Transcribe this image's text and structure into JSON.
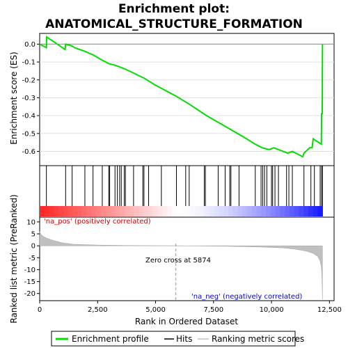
{
  "chart_data": {
    "type": "line",
    "title_line1": "Enrichment plot:",
    "title_line2": "ANATOMICAL_STRUCTURE_FORMATION",
    "es_panel": {
      "ylabel": "Enrichment score (ES)",
      "ylim": [
        -0.68,
        0.06
      ],
      "yticks": [
        0.0,
        -0.1,
        -0.2,
        -0.3,
        -0.4,
        -0.5,
        -0.6
      ],
      "ytick_labels": [
        "0.0",
        "-0.1",
        "-0.2",
        "-0.3",
        "-0.4",
        "-0.5",
        "-0.6"
      ],
      "series_name": "Enrichment profile",
      "color": "#00dd00",
      "points": [
        [
          0,
          0.0
        ],
        [
          290,
          -0.02
        ],
        [
          300,
          0.04
        ],
        [
          1100,
          -0.03
        ],
        [
          1120,
          0.0
        ],
        [
          1400,
          -0.01
        ],
        [
          1500,
          -0.02
        ],
        [
          1950,
          -0.04
        ],
        [
          2300,
          -0.06
        ],
        [
          2700,
          -0.09
        ],
        [
          3000,
          -0.11
        ],
        [
          3300,
          -0.12
        ],
        [
          3500,
          -0.13
        ],
        [
          3700,
          -0.14
        ],
        [
          4500,
          -0.19
        ],
        [
          5000,
          -0.23
        ],
        [
          5874,
          -0.29
        ],
        [
          6500,
          -0.34
        ],
        [
          7200,
          -0.4
        ],
        [
          8000,
          -0.46
        ],
        [
          8800,
          -0.52
        ],
        [
          9300,
          -0.56
        ],
        [
          9600,
          -0.58
        ],
        [
          9900,
          -0.59
        ],
        [
          10100,
          -0.58
        ],
        [
          10300,
          -0.59
        ],
        [
          10700,
          -0.61
        ],
        [
          10900,
          -0.6
        ],
        [
          11200,
          -0.62
        ],
        [
          11350,
          -0.63
        ],
        [
          11400,
          -0.61
        ],
        [
          11650,
          -0.58
        ],
        [
          11750,
          -0.58
        ],
        [
          11800,
          -0.53
        ],
        [
          12150,
          -0.56
        ],
        [
          12160,
          -0.39
        ],
        [
          12190,
          -0.39
        ],
        [
          12200,
          0.0
        ]
      ]
    },
    "hits": [
      290,
      1120,
      1400,
      1950,
      2300,
      2700,
      2980,
      3020,
      3250,
      3350,
      3450,
      3520,
      3650,
      3700,
      4050,
      4450,
      4500,
      4700,
      5250,
      5900,
      6300,
      6450,
      7100,
      7150,
      7700,
      8000,
      8200,
      8250,
      8600,
      9300,
      9550,
      9620,
      9700,
      9800,
      10000,
      10050,
      10150,
      10300,
      10650,
      10750,
      10900,
      11400,
      11700,
      11850,
      12100,
      12160,
      12200
    ],
    "metric_panel": {
      "ylabel": "Ranked list metric (PreRanked)",
      "ylim": [
        -23,
        12
      ],
      "yticks": [
        10,
        5,
        0,
        -5,
        -10,
        -15,
        -20
      ],
      "ytick_labels": [
        "10",
        "5",
        "0",
        "-5",
        "-10",
        "-15",
        "-20"
      ],
      "series_name": "Ranking metric scores",
      "profile": [
        [
          0,
          6.0
        ],
        [
          60,
          4.8
        ],
        [
          150,
          4.0
        ],
        [
          300,
          3.2
        ],
        [
          600,
          2.2
        ],
        [
          1000,
          1.2
        ],
        [
          1500,
          0.6
        ],
        [
          2500,
          0.3
        ],
        [
          4000,
          0.1
        ],
        [
          5874,
          0.0
        ],
        [
          8000,
          -0.2
        ],
        [
          9500,
          -0.5
        ],
        [
          10500,
          -0.9
        ],
        [
          11000,
          -1.4
        ],
        [
          11500,
          -2.2
        ],
        [
          11800,
          -3.2
        ],
        [
          12000,
          -4.5
        ],
        [
          12100,
          -6.5
        ],
        [
          12150,
          -9.0
        ],
        [
          12180,
          -14.0
        ],
        [
          12200,
          -22.5
        ]
      ]
    },
    "xaxis": {
      "label": "Rank in Ordered Dataset",
      "xlim": [
        0,
        12700
      ],
      "ticks": [
        0,
        2500,
        5000,
        7500,
        10000,
        12500
      ],
      "tick_labels": [
        "0",
        "2,500",
        "5,000",
        "7,500",
        "10,000",
        "12,500"
      ]
    },
    "zero_cross_label": "Zero cross at 5874",
    "zero_cross": 5874,
    "pos_label": "'na_pos' (positively correlated)",
    "neg_label": "'na_neg' (negatively correlated)",
    "colors": {
      "pos": "#cc0000",
      "neg": "#0000cc",
      "hits_line": "#000000",
      "metric_fill": "#c0c0c0"
    },
    "legend": [
      {
        "label": "Enrichment profile",
        "kind": "line",
        "color": "#00dd00"
      },
      {
        "label": "Hits",
        "kind": "line",
        "color": "#000000"
      },
      {
        "label": "Ranking metric scores",
        "kind": "line",
        "color": "#c0c0c0"
      }
    ]
  }
}
